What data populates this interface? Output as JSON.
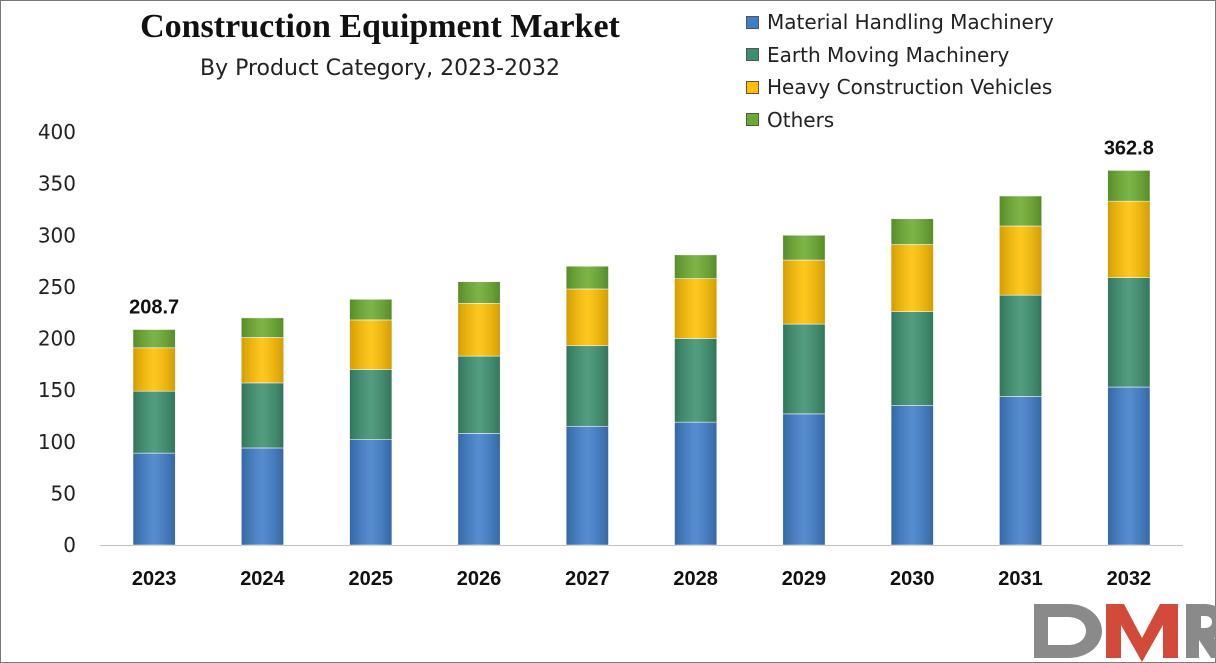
{
  "chart_data": {
    "type": "bar",
    "stacked": true,
    "title": "Construction Equipment Market",
    "subtitle": "By Product Category, 2023-2032",
    "categories": [
      "2023",
      "2024",
      "2025",
      "2026",
      "2027",
      "2028",
      "2029",
      "2030",
      "2031",
      "2032"
    ],
    "series": [
      {
        "name": "Material Handling Machinery",
        "color": "#3e7dc9",
        "values": [
          89,
          94,
          102,
          108,
          115,
          119,
          127,
          135,
          144,
          153
        ]
      },
      {
        "name": "Earth Moving Machinery",
        "color": "#3b8f6e",
        "values": [
          60,
          63,
          68,
          75,
          78,
          81,
          87,
          91,
          98,
          106
        ]
      },
      {
        "name": "Heavy Construction Vehicles",
        "color": "#ffc000",
        "values": [
          42,
          44,
          48,
          51,
          55,
          58,
          62,
          65,
          67,
          74
        ]
      },
      {
        "name": "Others",
        "color": "#6aaa2e",
        "values": [
          17.7,
          19,
          20,
          21,
          22,
          23,
          24,
          25,
          29,
          29.8
        ]
      }
    ],
    "data_labels": [
      {
        "category": "2023",
        "text": "208.7"
      },
      {
        "category": "2032",
        "text": "362.8"
      }
    ],
    "ylim": [
      0,
      400
    ],
    "yticks": [
      "0",
      "50",
      "100",
      "150",
      "200",
      "250",
      "300",
      "350",
      "400"
    ],
    "xlabel": "",
    "ylabel": "",
    "grid": false,
    "legend_position": "top-right"
  },
  "watermark": {
    "text": "DMR"
  }
}
